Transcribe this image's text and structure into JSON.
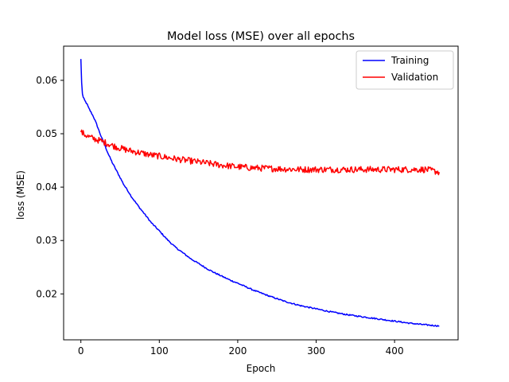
{
  "chart_data": {
    "type": "line",
    "title": "Model loss (MSE) over all epochs",
    "xlabel": "Epoch",
    "ylabel": "loss (MSE)",
    "xlim": [
      -22,
      481
    ],
    "ylim": [
      0.0114,
      0.0664
    ],
    "xticks": [
      0,
      100,
      200,
      300,
      400
    ],
    "yticks": [
      0.02,
      0.03,
      0.04,
      0.05,
      0.06
    ],
    "ytick_labels": [
      "0.02",
      "0.03",
      "0.04",
      "0.05",
      "0.06"
    ],
    "grid": false,
    "legend_position": "top-right",
    "series": [
      {
        "name": "Training",
        "color": "#0000ff",
        "x": [
          0,
          1,
          2,
          3,
          5,
          8,
          10,
          13,
          16,
          20,
          25,
          30,
          35,
          40,
          45,
          50,
          55,
          60,
          65,
          70,
          75,
          80,
          90,
          100,
          110,
          120,
          130,
          140,
          150,
          160,
          170,
          180,
          190,
          200,
          220,
          240,
          260,
          280,
          300,
          320,
          340,
          360,
          380,
          400,
          420,
          440,
          457
        ],
        "y": [
          0.064,
          0.0595,
          0.0575,
          0.0568,
          0.0562,
          0.0555,
          0.0548,
          0.054,
          0.0532,
          0.0518,
          0.0498,
          0.048,
          0.0462,
          0.0446,
          0.0432,
          0.0418,
          0.0404,
          0.0393,
          0.0381,
          0.0371,
          0.0361,
          0.0352,
          0.0333,
          0.0318,
          0.0302,
          0.0288,
          0.0277,
          0.0266,
          0.0257,
          0.0248,
          0.024,
          0.0233,
          0.0226,
          0.022,
          0.0207,
          0.0196,
          0.0186,
          0.0178,
          0.0172,
          0.0166,
          0.0161,
          0.0157,
          0.0153,
          0.0149,
          0.0145,
          0.0142,
          0.014
        ]
      },
      {
        "name": "Validation",
        "color": "#ff0000",
        "x": [
          0,
          10,
          20,
          30,
          40,
          50,
          60,
          70,
          80,
          90,
          100,
          120,
          140,
          160,
          180,
          200,
          220,
          240,
          260,
          280,
          300,
          320,
          340,
          360,
          380,
          400,
          420,
          440,
          457
        ],
        "y": [
          0.0503,
          0.0494,
          0.0489,
          0.0484,
          0.0478,
          0.0473,
          0.0469,
          0.0466,
          0.0463,
          0.046,
          0.0458,
          0.0453,
          0.0449,
          0.0445,
          0.0441,
          0.0438,
          0.0436,
          0.0435,
          0.0434,
          0.0433,
          0.0433,
          0.0433,
          0.0433,
          0.0433,
          0.0433,
          0.0433,
          0.0433,
          0.0433,
          0.0428
        ]
      }
    ]
  }
}
